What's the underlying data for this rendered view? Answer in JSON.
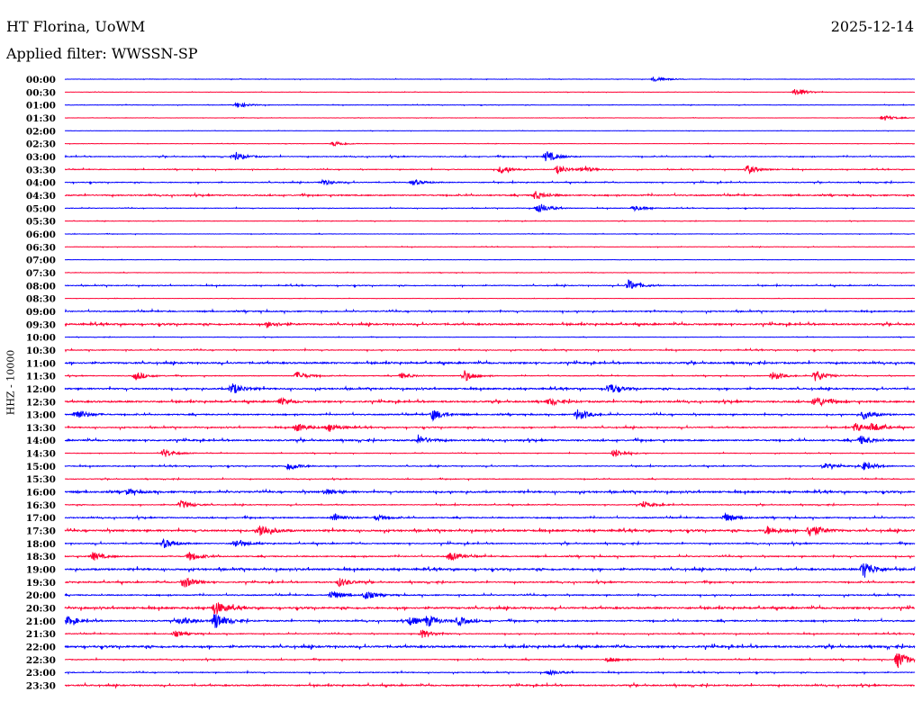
{
  "header": {
    "station": "HT Florina, UoWM",
    "date": "2025-12-14",
    "filter": "Applied filter: WWSSN-SP"
  },
  "chart_data": {
    "type": "line",
    "subtype": "helicorder",
    "ylabel": "HHZ - 10000",
    "minutes_per_row": 30,
    "colors": [
      "#0000ff",
      "#ff0033"
    ],
    "rows": [
      {
        "label": "00:00",
        "noise": 0.3,
        "events": [
          [
            20.8,
            2
          ]
        ]
      },
      {
        "label": "00:30",
        "noise": 0.2,
        "events": [
          [
            25.8,
            3
          ]
        ]
      },
      {
        "label": "01:00",
        "noise": 0.3,
        "events": [
          [
            6.1,
            2
          ]
        ]
      },
      {
        "label": "01:30",
        "noise": 0.2,
        "events": [
          [
            28.9,
            2
          ]
        ]
      },
      {
        "label": "02:00",
        "noise": 0.2,
        "events": []
      },
      {
        "label": "02:30",
        "noise": 0.2,
        "events": [
          [
            9.5,
            2
          ]
        ]
      },
      {
        "label": "03:00",
        "noise": 0.6,
        "events": [
          [
            6.0,
            3
          ],
          [
            17.0,
            4
          ]
        ]
      },
      {
        "label": "03:30",
        "noise": 0.5,
        "events": [
          [
            15.4,
            3
          ],
          [
            17.4,
            3
          ],
          [
            18.3,
            2
          ],
          [
            24.1,
            3
          ]
        ]
      },
      {
        "label": "04:00",
        "noise": 0.6,
        "events": [
          [
            9.1,
            2
          ],
          [
            12.3,
            2
          ]
        ]
      },
      {
        "label": "04:30",
        "noise": 0.9,
        "events": [
          [
            16.6,
            3
          ]
        ]
      },
      {
        "label": "05:00",
        "noise": 0.4,
        "events": [
          [
            16.7,
            4
          ],
          [
            20.1,
            2
          ]
        ]
      },
      {
        "label": "05:30",
        "noise": 0.3,
        "events": []
      },
      {
        "label": "06:00",
        "noise": 0.3,
        "events": []
      },
      {
        "label": "06:30",
        "noise": 0.3,
        "events": []
      },
      {
        "label": "07:00",
        "noise": 0.2,
        "events": []
      },
      {
        "label": "07:30",
        "noise": 0.3,
        "events": []
      },
      {
        "label": "08:00",
        "noise": 0.6,
        "events": [
          [
            19.9,
            4
          ]
        ]
      },
      {
        "label": "08:30",
        "noise": 0.2,
        "events": []
      },
      {
        "label": "09:00",
        "noise": 0.8,
        "events": []
      },
      {
        "label": "09:30",
        "noise": 1.2,
        "events": [
          [
            7.2,
            2
          ]
        ]
      },
      {
        "label": "10:00",
        "noise": 0.3,
        "events": []
      },
      {
        "label": "10:30",
        "noise": 0.6,
        "events": []
      },
      {
        "label": "11:00",
        "noise": 1.2,
        "events": []
      },
      {
        "label": "11:30",
        "noise": 0.5,
        "events": [
          [
            2.5,
            3
          ],
          [
            8.2,
            3
          ],
          [
            11.9,
            2
          ],
          [
            14.1,
            4
          ],
          [
            25.0,
            3
          ],
          [
            26.5,
            4
          ]
        ]
      },
      {
        "label": "12:00",
        "noise": 1.1,
        "events": [
          [
            5.9,
            4
          ],
          [
            19.2,
            4
          ]
        ]
      },
      {
        "label": "12:30",
        "noise": 1.2,
        "events": [
          [
            7.6,
            2
          ],
          [
            17.1,
            2
          ],
          [
            26.5,
            4
          ]
        ]
      },
      {
        "label": "13:00",
        "noise": 0.9,
        "events": [
          [
            0.4,
            4
          ],
          [
            13.0,
            4
          ],
          [
            18.1,
            4
          ],
          [
            28.2,
            3
          ]
        ]
      },
      {
        "label": "13:30",
        "noise": 0.8,
        "events": [
          [
            8.2,
            3
          ],
          [
            9.3,
            3
          ],
          [
            27.9,
            3
          ],
          [
            28.5,
            3
          ]
        ]
      },
      {
        "label": "14:00",
        "noise": 1.1,
        "events": [
          [
            12.5,
            3
          ],
          [
            28.1,
            3
          ]
        ]
      },
      {
        "label": "14:30",
        "noise": 0.4,
        "events": [
          [
            3.5,
            3
          ],
          [
            19.4,
            3
          ]
        ]
      },
      {
        "label": "15:00",
        "noise": 0.6,
        "events": [
          [
            7.9,
            3
          ],
          [
            26.8,
            2
          ],
          [
            28.2,
            3
          ]
        ]
      },
      {
        "label": "15:30",
        "noise": 0.5,
        "events": []
      },
      {
        "label": "16:00",
        "noise": 1.2,
        "events": [
          [
            2.2,
            2
          ],
          [
            9.2,
            2
          ]
        ]
      },
      {
        "label": "16:30",
        "noise": 0.6,
        "events": [
          [
            4.1,
            3
          ],
          [
            20.4,
            2
          ]
        ]
      },
      {
        "label": "17:00",
        "noise": 0.8,
        "events": [
          [
            9.5,
            3
          ],
          [
            11.0,
            2
          ],
          [
            23.3,
            3
          ]
        ]
      },
      {
        "label": "17:30",
        "noise": 1.3,
        "events": [
          [
            6.9,
            5
          ],
          [
            24.8,
            3
          ],
          [
            26.3,
            5
          ]
        ]
      },
      {
        "label": "18:00",
        "noise": 0.8,
        "events": [
          [
            3.5,
            3
          ],
          [
            6.0,
            3
          ]
        ]
      },
      {
        "label": "18:30",
        "noise": 0.8,
        "events": [
          [
            1.0,
            3
          ],
          [
            4.4,
            3
          ],
          [
            13.6,
            3
          ]
        ]
      },
      {
        "label": "19:00",
        "noise": 1.3,
        "events": [
          [
            28.2,
            6
          ]
        ]
      },
      {
        "label": "19:30",
        "noise": 0.9,
        "events": [
          [
            4.2,
            4
          ],
          [
            9.7,
            3
          ]
        ]
      },
      {
        "label": "20:00",
        "noise": 0.8,
        "events": [
          [
            9.4,
            3
          ],
          [
            10.6,
            3
          ]
        ]
      },
      {
        "label": "20:30",
        "noise": 1.3,
        "events": [
          [
            5.3,
            5
          ]
        ]
      },
      {
        "label": "21:00",
        "noise": 1.0,
        "events": [
          [
            0.1,
            3
          ],
          [
            4.1,
            3
          ],
          [
            5.3,
            6
          ],
          [
            12.2,
            3
          ],
          [
            12.8,
            4
          ],
          [
            13.9,
            3
          ]
        ]
      },
      {
        "label": "21:30",
        "noise": 0.6,
        "events": [
          [
            3.9,
            2
          ],
          [
            12.6,
            3
          ]
        ]
      },
      {
        "label": "22:00",
        "noise": 1.4,
        "events": []
      },
      {
        "label": "22:30",
        "noise": 0.6,
        "events": [
          [
            19.2,
            2
          ],
          [
            29.4,
            6
          ]
        ]
      },
      {
        "label": "23:00",
        "noise": 0.6,
        "events": [
          [
            17.1,
            2
          ]
        ]
      },
      {
        "label": "23:30",
        "noise": 1.0,
        "events": []
      }
    ]
  }
}
